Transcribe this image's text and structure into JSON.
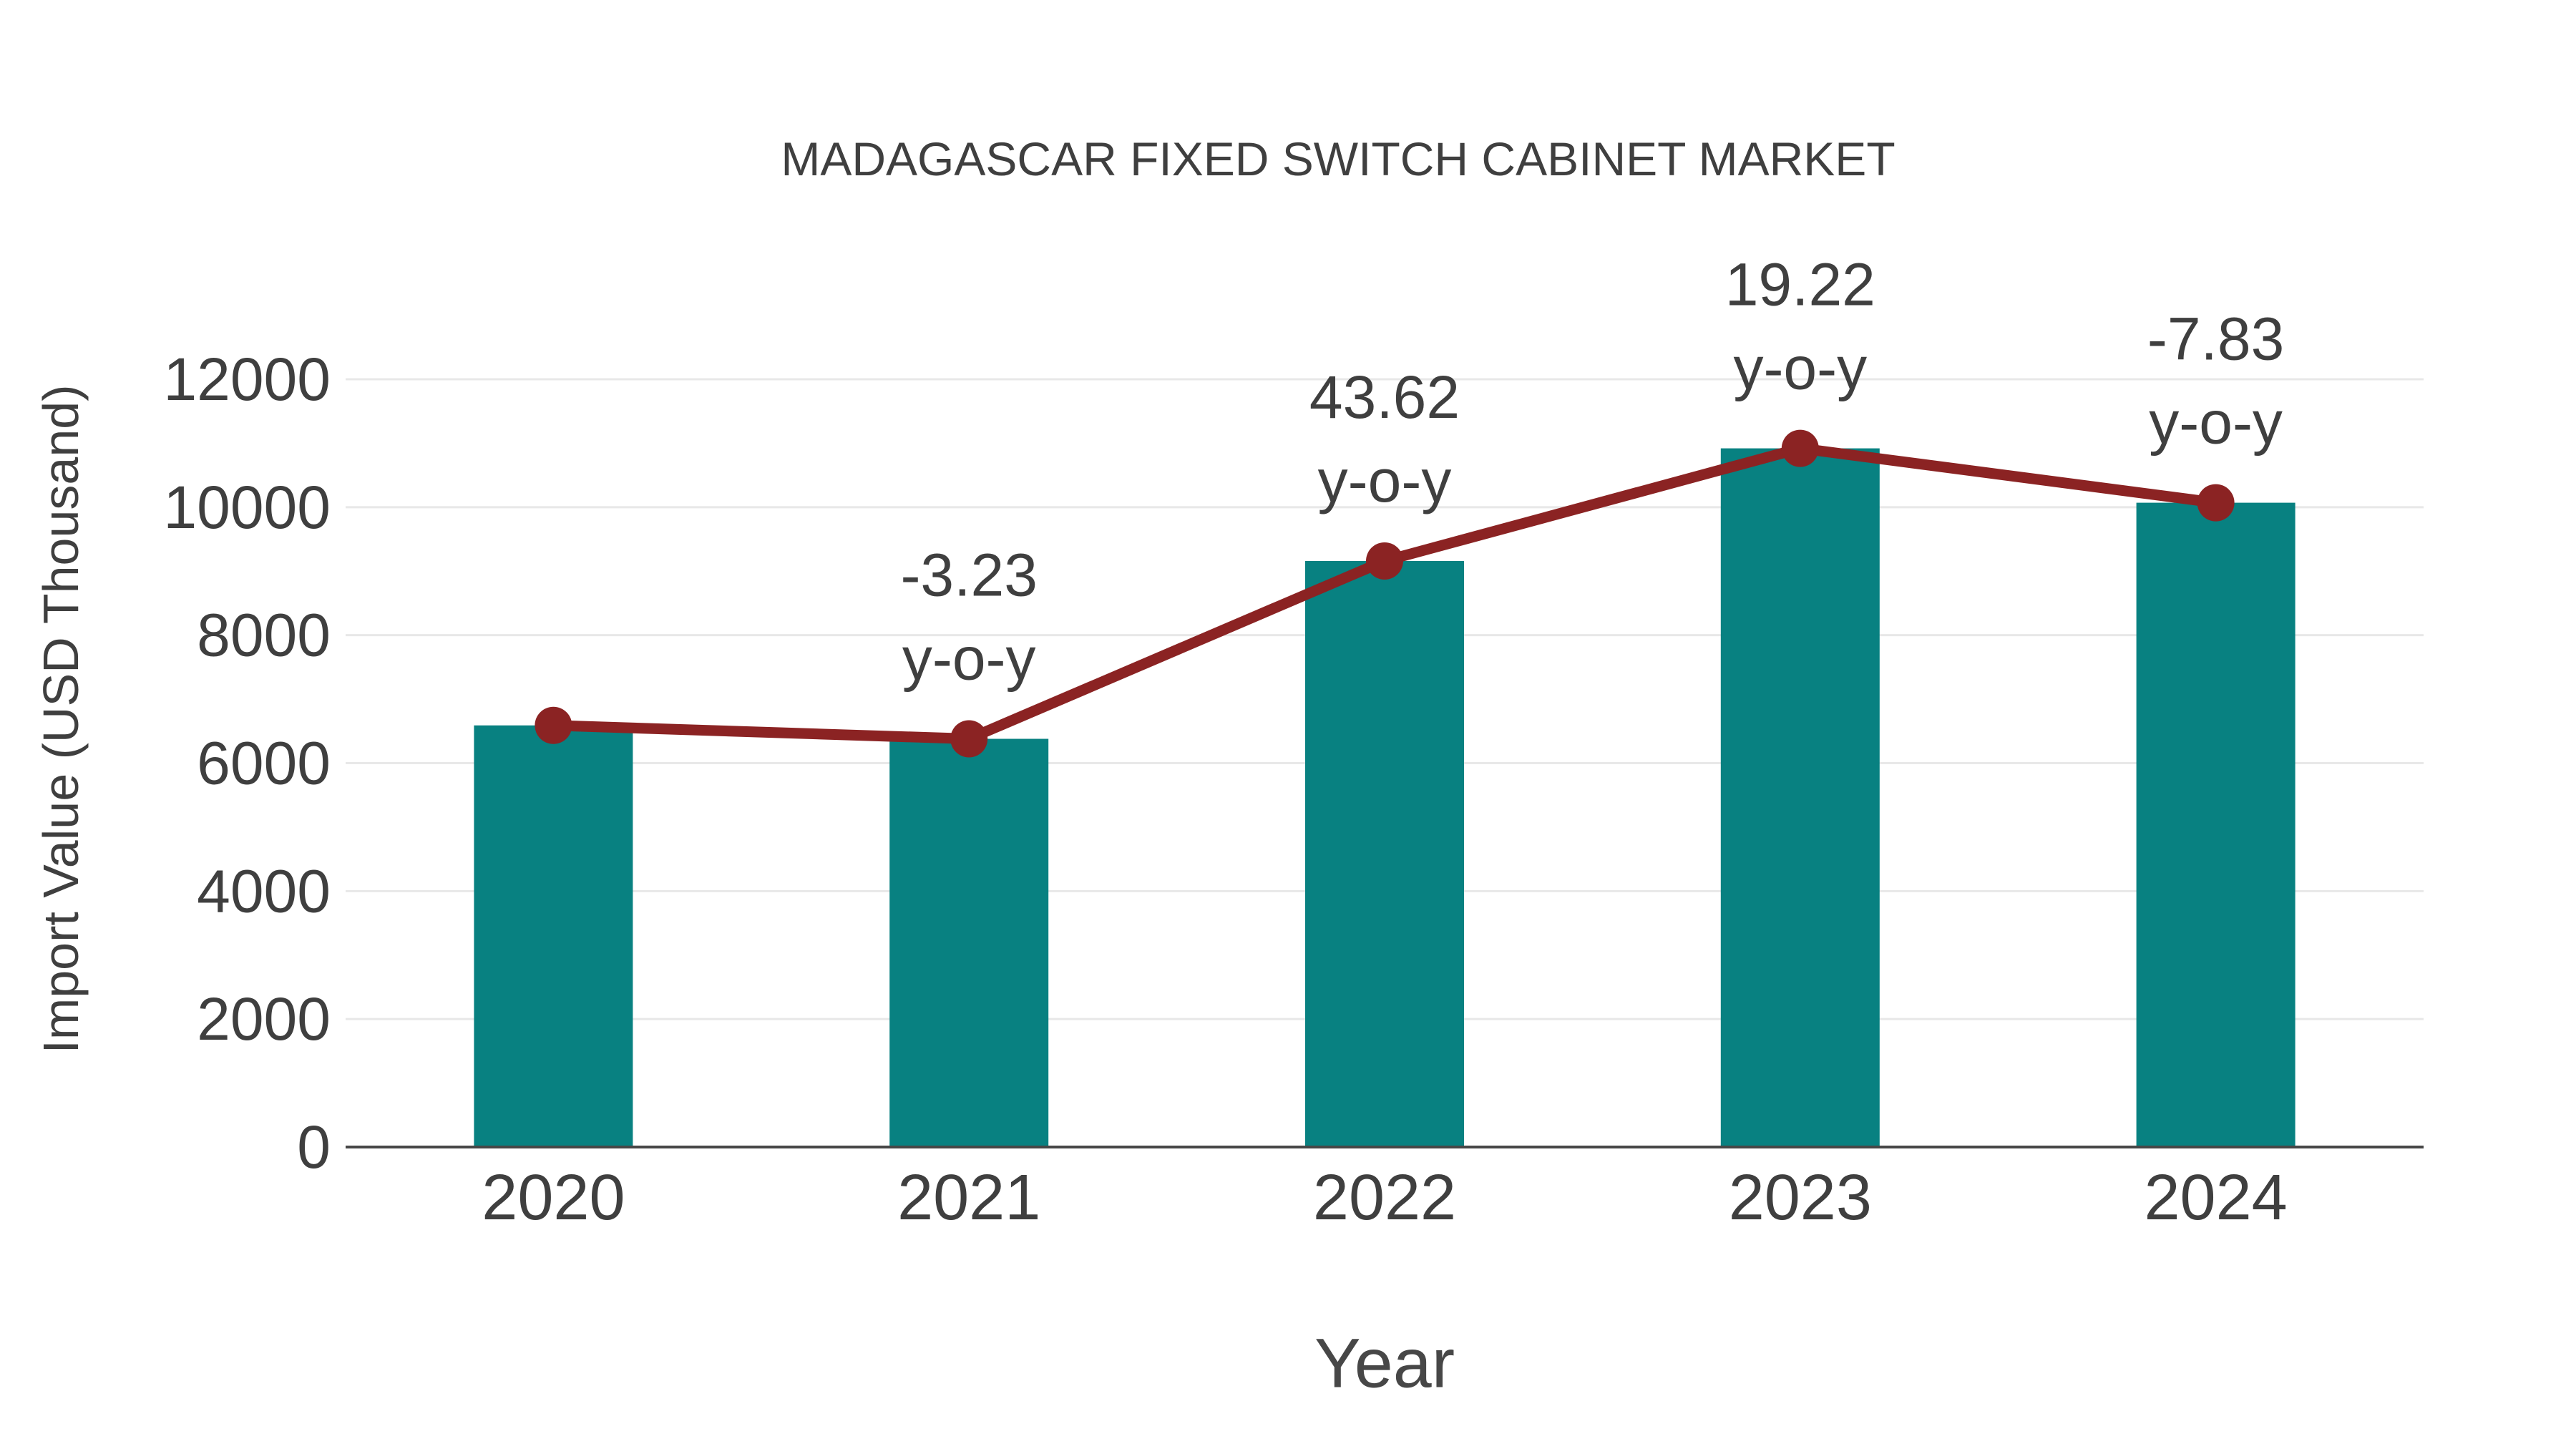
{
  "chart_data": {
    "type": "bar",
    "title": "MADAGASCAR FIXED SWITCH CABINET MARKET",
    "xlabel": "Year",
    "ylabel": "Import Value (USD Thousand)",
    "categories": [
      "2020",
      "2021",
      "2022",
      "2023",
      "2024"
    ],
    "series": [
      {
        "name": "Import Value (USD Thousand)",
        "type": "bar",
        "color": "#088181",
        "values": [
          6590,
          6380,
          9160,
          10920,
          10070
        ]
      },
      {
        "name": "Year-over-year trend",
        "type": "line",
        "color": "#8b2323",
        "values": [
          6590,
          6380,
          9160,
          10920,
          10070
        ]
      }
    ],
    "annotations": [
      {
        "category": "2021",
        "value": "-3.23",
        "suffix": "y-o-y"
      },
      {
        "category": "2022",
        "value": "43.62",
        "suffix": "y-o-y"
      },
      {
        "category": "2023",
        "value": "19.22",
        "suffix": "y-o-y"
      },
      {
        "category": "2024",
        "value": "-7.83",
        "suffix": "y-o-y"
      }
    ],
    "yticks": [
      0,
      2000,
      4000,
      6000,
      8000,
      10000,
      12000
    ],
    "ylim": [
      0,
      12000
    ],
    "grid": true,
    "legend_position": "none",
    "colors": {
      "bar": "#088181",
      "line": "#8b2323",
      "marker": "#8b2323",
      "text": "#3f3f3f",
      "grid": "#e8e8e8",
      "axis": "#474747",
      "background": "#ffffff"
    }
  }
}
